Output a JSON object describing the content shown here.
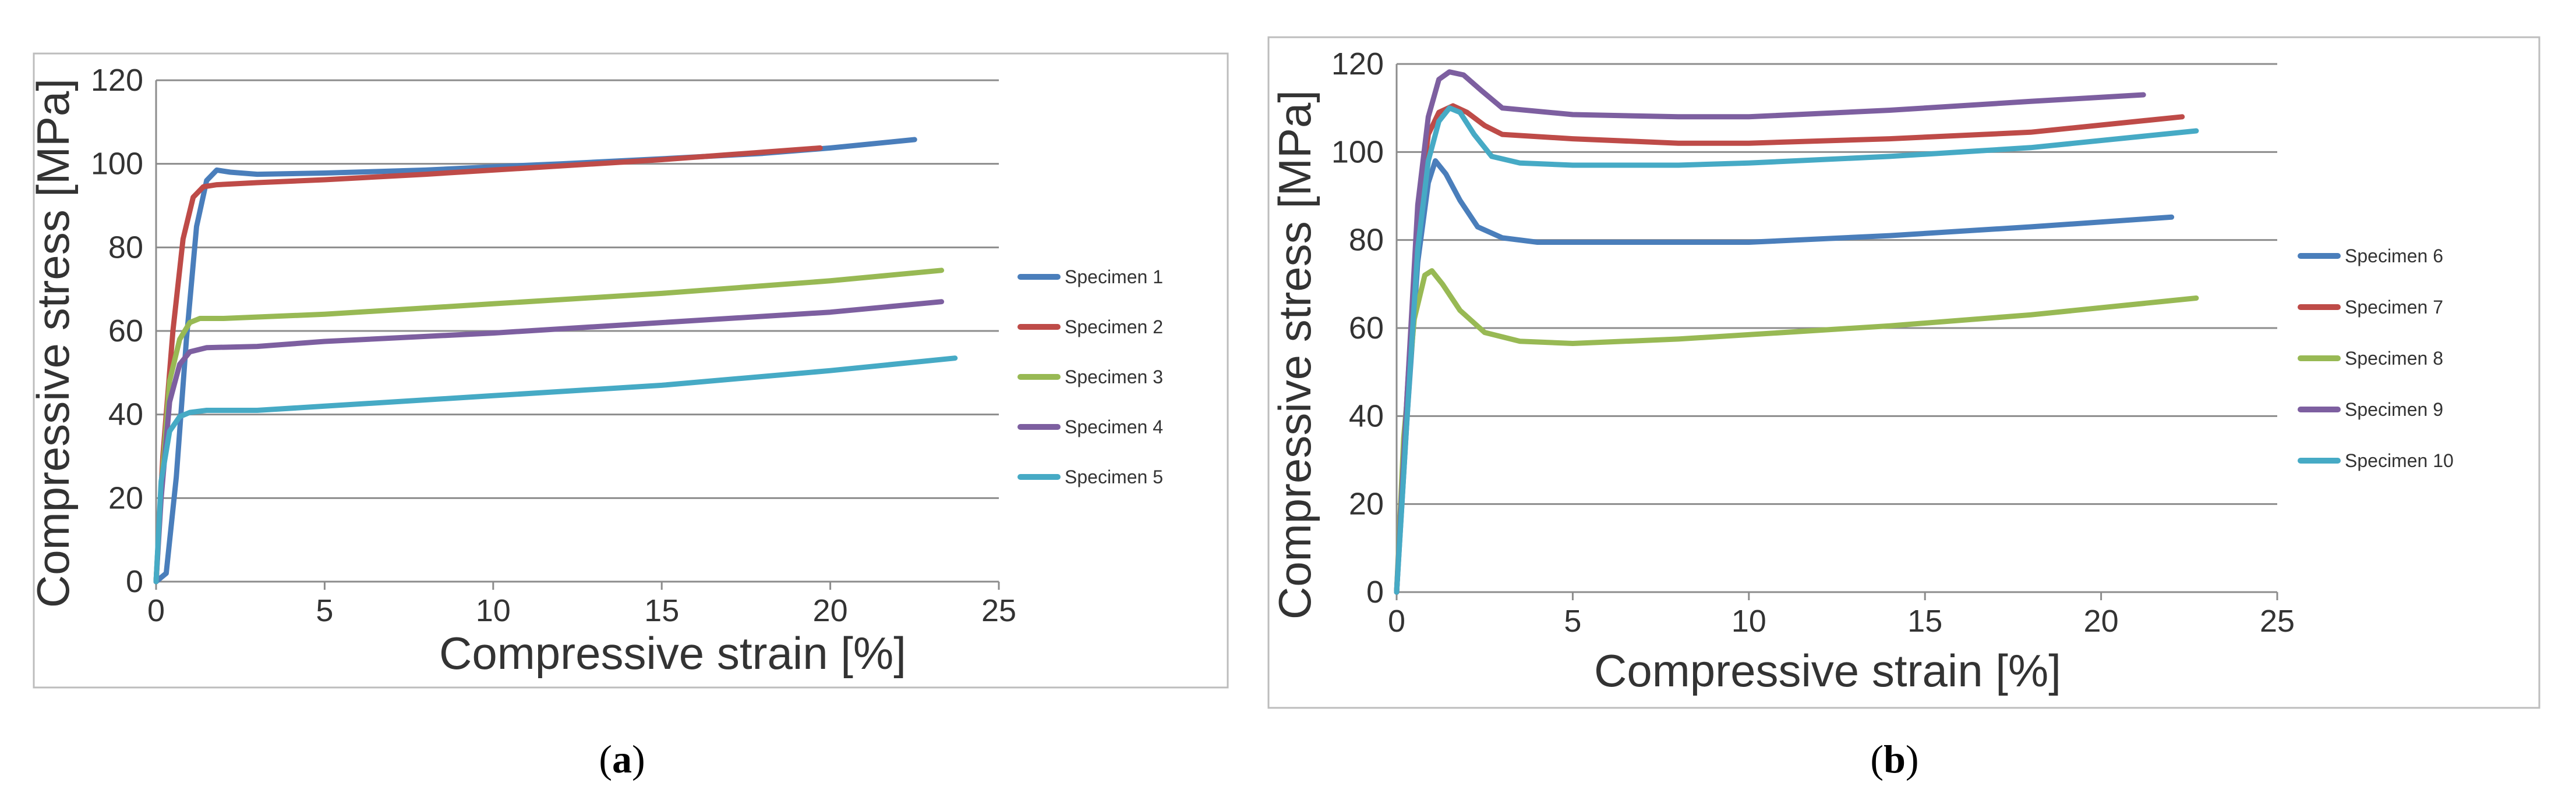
{
  "chart_data": [
    {
      "type": "line",
      "subfigure_label": "a",
      "xlabel": "Compressive strain [%]",
      "ylabel": "Compressive stress [MPa]",
      "xlim": [
        0,
        25
      ],
      "ylim": [
        0,
        120
      ],
      "xticks": [
        0,
        5,
        10,
        15,
        20,
        25
      ],
      "yticks": [
        0,
        20,
        40,
        60,
        80,
        100,
        120
      ],
      "grid": "horizontal",
      "legend_position": "right",
      "series": [
        {
          "name": "Specimen 1",
          "color": "#4a7ebb",
          "x": [
            0,
            0.3,
            0.6,
            0.9,
            1.2,
            1.5,
            1.8,
            2.2,
            3,
            5,
            8,
            10,
            12,
            15,
            18,
            20,
            22.5
          ],
          "y": [
            0,
            2,
            25,
            58,
            85,
            96,
            98.5,
            98,
            97.5,
            97.8,
            98.5,
            99.3,
            100,
            101.2,
            102.5,
            103.8,
            105.8
          ]
        },
        {
          "name": "Specimen 2",
          "color": "#be4b48",
          "x": [
            0,
            0.2,
            0.5,
            0.8,
            1.1,
            1.4,
            1.8,
            3,
            5,
            8,
            10,
            12,
            15,
            17,
            19.7
          ],
          "y": [
            0,
            30,
            60,
            82,
            92,
            94.5,
            95,
            95.5,
            96.2,
            97.5,
            98.5,
            99.5,
            101,
            102.2,
            103.8
          ]
        },
        {
          "name": "Specimen 3",
          "color": "#98b954",
          "x": [
            0,
            0.15,
            0.4,
            0.7,
            1,
            1.3,
            2,
            5,
            10,
            15,
            20,
            23.3
          ],
          "y": [
            0,
            22,
            48,
            58,
            62,
            63,
            63,
            64,
            66.5,
            69,
            72,
            74.5
          ]
        },
        {
          "name": "Specimen 4",
          "color": "#7d5fa0",
          "x": [
            0,
            0.15,
            0.4,
            0.7,
            1,
            1.5,
            3,
            5,
            10,
            15,
            20,
            23.3
          ],
          "y": [
            0,
            20,
            43,
            52,
            55,
            56,
            56.3,
            57.5,
            59.5,
            62,
            64.5,
            67
          ]
        },
        {
          "name": "Specimen 5",
          "color": "#46aac5",
          "x": [
            0,
            0.15,
            0.4,
            0.7,
            1,
            1.5,
            3,
            5,
            10,
            15,
            20,
            23.7
          ],
          "y": [
            0,
            24,
            36,
            39.5,
            40.5,
            41,
            41,
            42,
            44.5,
            47,
            50.5,
            53.5
          ]
        }
      ]
    },
    {
      "type": "line",
      "subfigure_label": "b",
      "xlabel": "Compressive strain [%]",
      "ylabel": "Compressive stress [MPa]",
      "xlim": [
        0,
        25
      ],
      "ylim": [
        0,
        120
      ],
      "xticks": [
        0,
        5,
        10,
        15,
        20,
        25
      ],
      "yticks": [
        0,
        20,
        40,
        60,
        80,
        100,
        120
      ],
      "grid": "horizontal",
      "legend_position": "right",
      "series": [
        {
          "name": "Specimen 6",
          "color": "#4a7ebb",
          "x": [
            0,
            0.3,
            0.6,
            0.9,
            1.1,
            1.4,
            1.8,
            2.3,
            3,
            4,
            6,
            10,
            14,
            18,
            22
          ],
          "y": [
            0,
            40,
            75,
            93,
            98,
            95,
            89,
            83,
            80.5,
            79.5,
            79.5,
            79.5,
            81,
            83,
            85.2
          ]
        },
        {
          "name": "Specimen 7",
          "color": "#be4b48",
          "x": [
            0,
            0.3,
            0.6,
            0.9,
            1.2,
            1.6,
            2,
            2.5,
            3,
            5,
            8,
            10,
            14,
            18,
            22.3
          ],
          "y": [
            0,
            45,
            85,
            104,
            109,
            110.5,
            109,
            106,
            104,
            103,
            102,
            102,
            103,
            104.5,
            108
          ]
        },
        {
          "name": "Specimen 8",
          "color": "#98b954",
          "x": [
            0,
            0.2,
            0.5,
            0.8,
            1,
            1.3,
            1.8,
            2.5,
            3.5,
            5,
            8,
            10,
            14,
            18,
            22.7
          ],
          "y": [
            0,
            35,
            62,
            72,
            73,
            70,
            64,
            59,
            57,
            56.5,
            57.5,
            58.5,
            60.5,
            63,
            66.8
          ]
        },
        {
          "name": "Specimen 9",
          "color": "#7d5fa0",
          "x": [
            0,
            0.3,
            0.6,
            0.9,
            1.2,
            1.5,
            1.9,
            2.4,
            3,
            5,
            8,
            10,
            14,
            18,
            21.2
          ],
          "y": [
            0,
            45,
            88,
            108,
            116.5,
            118.2,
            117.5,
            114,
            110,
            108.5,
            108,
            108,
            109.5,
            111.5,
            113
          ]
        },
        {
          "name": "Specimen 10",
          "color": "#46aac5",
          "x": [
            0,
            0.3,
            0.6,
            0.9,
            1.2,
            1.5,
            1.8,
            2.2,
            2.7,
            3.5,
            5,
            8,
            10,
            14,
            18,
            22.7
          ],
          "y": [
            0,
            40,
            78,
            98,
            107,
            110,
            109,
            104,
            99,
            97.5,
            97,
            97,
            97.5,
            99,
            101,
            104.8
          ]
        }
      ]
    }
  ],
  "captions": {
    "a": "(a)",
    "b": "(b)"
  }
}
